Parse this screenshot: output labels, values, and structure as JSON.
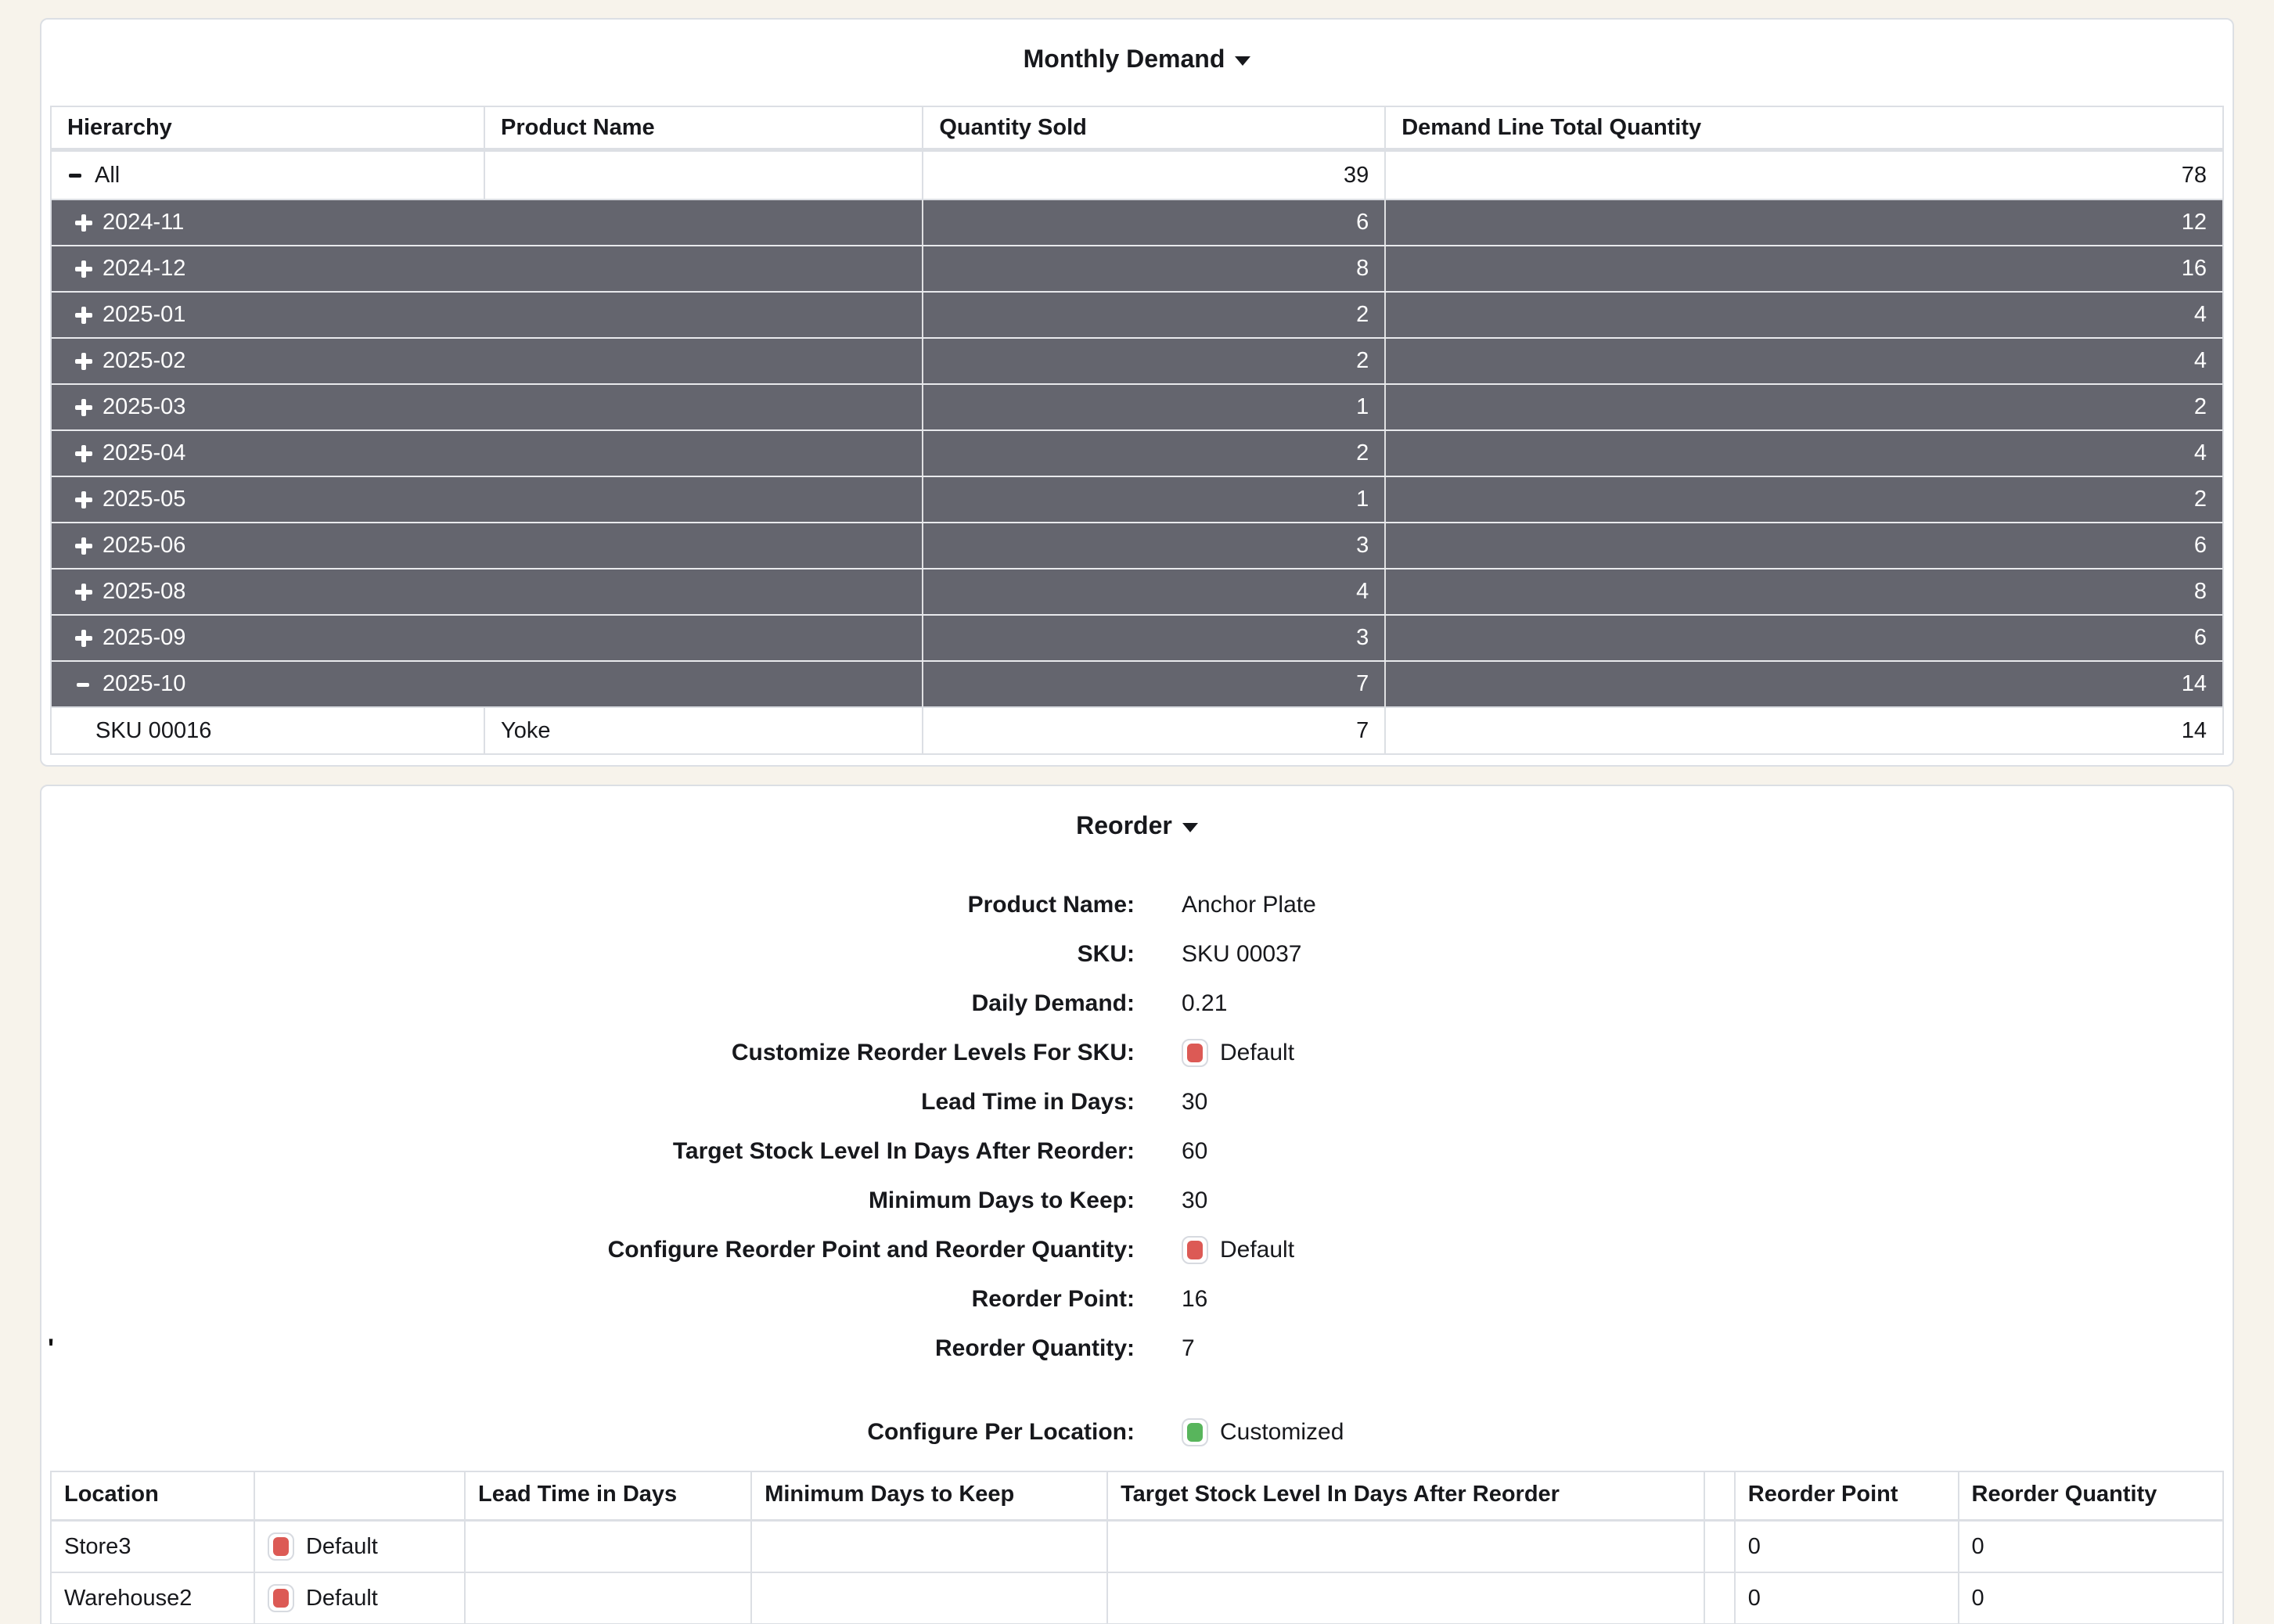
{
  "colors": {
    "danger": "#dc5a55",
    "success": "#58b55c",
    "row_dark": "#64656e",
    "border": "#dcdfe4",
    "page_bg": "#f7f3eb"
  },
  "monthly_demand": {
    "title": "Monthly Demand",
    "columns": [
      "Hierarchy",
      "Product Name",
      "Quantity Sold",
      "Demand Line Total Quantity"
    ],
    "rows": [
      {
        "type": "row-total",
        "icon": "minus",
        "hierarchy": "All",
        "product": "",
        "qty": "39",
        "demand": "78"
      },
      {
        "type": "row-group",
        "icon": "plus",
        "hierarchy": "2024-11",
        "product": "",
        "qty": "6",
        "demand": "12"
      },
      {
        "type": "row-group",
        "icon": "plus",
        "hierarchy": "2024-12",
        "product": "",
        "qty": "8",
        "demand": "16"
      },
      {
        "type": "row-group",
        "icon": "plus",
        "hierarchy": "2025-01",
        "product": "",
        "qty": "2",
        "demand": "4"
      },
      {
        "type": "row-group",
        "icon": "plus",
        "hierarchy": "2025-02",
        "product": "",
        "qty": "2",
        "demand": "4"
      },
      {
        "type": "row-group",
        "icon": "plus",
        "hierarchy": "2025-03",
        "product": "",
        "qty": "1",
        "demand": "2"
      },
      {
        "type": "row-group",
        "icon": "plus",
        "hierarchy": "2025-04",
        "product": "",
        "qty": "2",
        "demand": "4"
      },
      {
        "type": "row-group",
        "icon": "plus",
        "hierarchy": "2025-05",
        "product": "",
        "qty": "1",
        "demand": "2"
      },
      {
        "type": "row-group",
        "icon": "plus",
        "hierarchy": "2025-06",
        "product": "",
        "qty": "3",
        "demand": "6"
      },
      {
        "type": "row-group",
        "icon": "plus",
        "hierarchy": "2025-08",
        "product": "",
        "qty": "4",
        "demand": "8"
      },
      {
        "type": "row-group",
        "icon": "plus",
        "hierarchy": "2025-09",
        "product": "",
        "qty": "3",
        "demand": "6"
      },
      {
        "type": "row-group",
        "icon": "minus",
        "hierarchy": "2025-10",
        "product": "",
        "qty": "7",
        "demand": "14"
      },
      {
        "type": "row-leaf",
        "icon": "none",
        "hierarchy": "SKU 00016",
        "product": "Yoke",
        "qty": "7",
        "demand": "14"
      }
    ]
  },
  "reorder": {
    "title": "Reorder",
    "stray_mark": "'",
    "fields": [
      {
        "label": "Product Name:",
        "value": "Anchor Plate",
        "badge": "",
        "extra": ""
      },
      {
        "label": "SKU:",
        "value": "SKU 00037",
        "badge": "",
        "extra": ""
      },
      {
        "label": "Daily Demand:",
        "value": "0.21",
        "badge": "",
        "extra": ""
      },
      {
        "label": "Customize Reorder Levels For SKU:",
        "value": "Default",
        "badge": "red",
        "extra": ""
      },
      {
        "label": "Lead Time in Days:",
        "value": "30",
        "badge": "",
        "extra": ""
      },
      {
        "label": "Target Stock Level In Days After Reorder:",
        "value": "60",
        "badge": "",
        "extra": ""
      },
      {
        "label": "Minimum Days to Keep:",
        "value": "30",
        "badge": "",
        "extra": ""
      },
      {
        "label": "Configure Reorder Point and Reorder Quantity:",
        "value": "Default",
        "badge": "red",
        "extra": ""
      },
      {
        "label": "Reorder Point:",
        "value": "16",
        "badge": "",
        "extra": ""
      },
      {
        "label": "Reorder Quantity:",
        "value": "7",
        "badge": "",
        "extra": ""
      },
      {
        "label": "Configure Per Location:",
        "value": "Customized",
        "badge": "green",
        "extra": "spaced"
      }
    ]
  },
  "locations": {
    "columns": [
      "Location",
      "",
      "Lead Time in Days",
      "Minimum Days to Keep",
      "Target Stock Level In Days After Reorder",
      "",
      "Reorder Point",
      "Reorder Quantity"
    ],
    "rows": [
      {
        "row_class": "",
        "location": "Store3",
        "badge": "red",
        "badge_text": "Default",
        "lead_time": "",
        "min_days": "",
        "target": "",
        "reorder_point": "0",
        "reorder_qty": "0"
      },
      {
        "row_class": "",
        "location": "Warehouse2",
        "badge": "red",
        "badge_text": "Default",
        "lead_time": "",
        "min_days": "",
        "target": "",
        "reorder_point": "0",
        "reorder_qty": "0"
      },
      {
        "row_class": "partial",
        "location": "",
        "badge": "red",
        "badge_text": "",
        "lead_time": "",
        "min_days": "",
        "target": "",
        "reorder_point": "",
        "reorder_qty": ""
      }
    ]
  }
}
